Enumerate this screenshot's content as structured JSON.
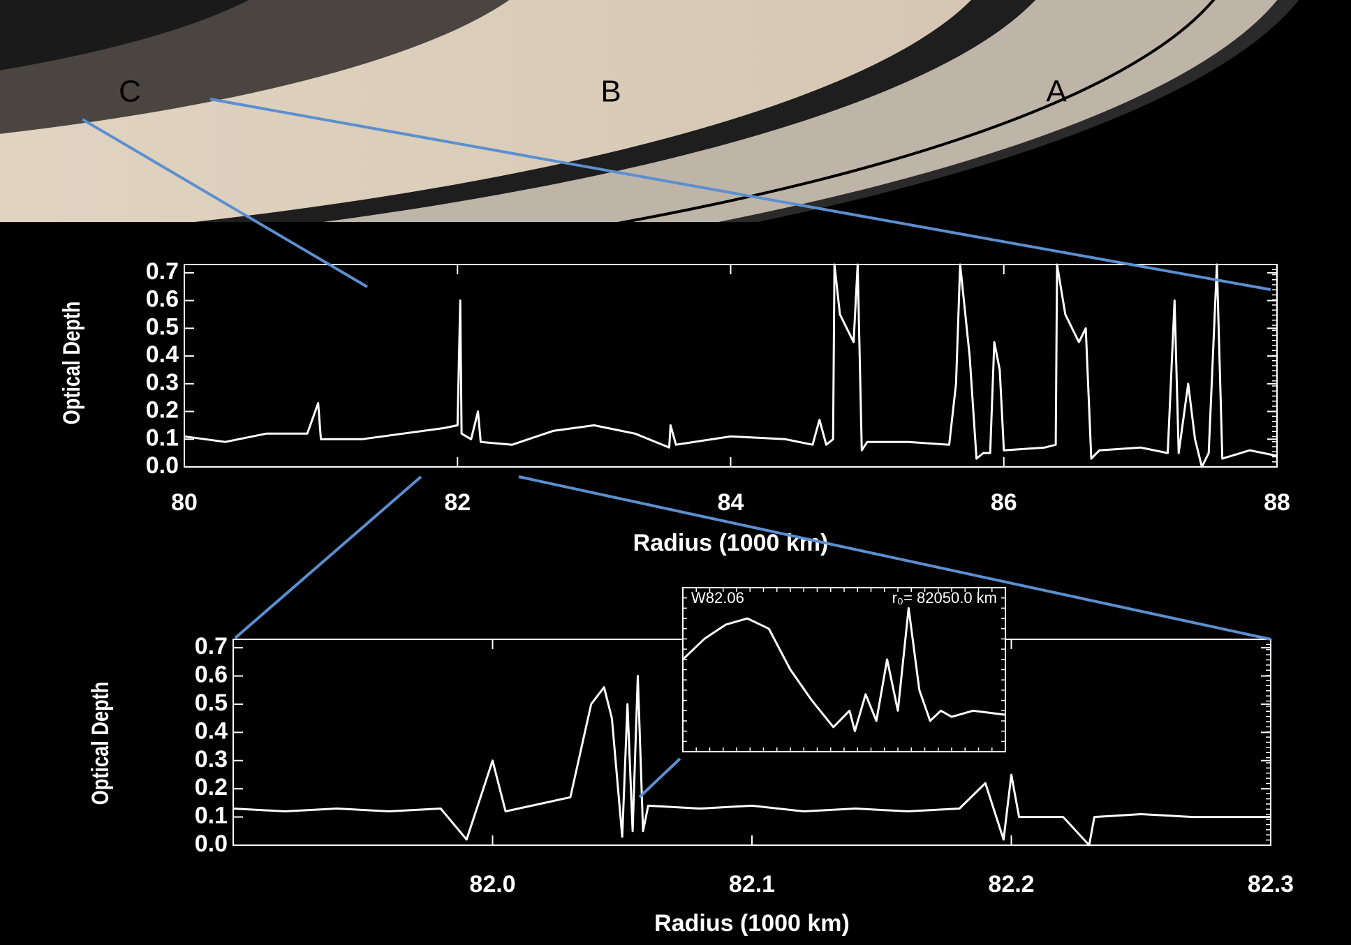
{
  "ring_image": {
    "labels": [
      "C",
      "B",
      "A"
    ]
  },
  "chart_data": [
    {
      "type": "line",
      "x_label": "Radius (1000 km)",
      "y_label": "Optical Depth",
      "color": "#ffffff",
      "x": [
        80.0,
        80.3,
        80.6,
        80.9,
        80.98,
        81.0,
        81.3,
        81.6,
        81.9,
        82.0,
        82.02,
        82.03,
        82.1,
        82.15,
        82.17,
        82.4,
        82.7,
        83.0,
        83.3,
        83.55,
        83.56,
        83.6,
        84.0,
        84.4,
        84.6,
        84.65,
        84.7,
        84.75,
        84.76,
        84.8,
        84.9,
        84.93,
        84.96,
        85.0,
        85.3,
        85.6,
        85.65,
        85.68,
        85.75,
        85.8,
        85.85,
        85.9,
        85.93,
        85.97,
        86.0,
        86.3,
        86.38,
        86.39,
        86.45,
        86.55,
        86.6,
        86.64,
        86.7,
        87.0,
        87.2,
        87.25,
        87.28,
        87.35,
        87.4,
        87.45,
        87.5,
        87.56,
        87.6,
        87.8,
        88.0
      ],
      "values": [
        0.11,
        0.09,
        0.12,
        0.12,
        0.23,
        0.1,
        0.1,
        0.12,
        0.14,
        0.15,
        0.6,
        0.12,
        0.1,
        0.2,
        0.09,
        0.08,
        0.13,
        0.15,
        0.12,
        0.07,
        0.15,
        0.08,
        0.11,
        0.1,
        0.08,
        0.17,
        0.08,
        0.1,
        0.73,
        0.55,
        0.45,
        0.73,
        0.06,
        0.09,
        0.09,
        0.08,
        0.3,
        0.73,
        0.4,
        0.03,
        0.05,
        0.05,
        0.45,
        0.35,
        0.06,
        0.07,
        0.08,
        0.73,
        0.55,
        0.45,
        0.5,
        0.03,
        0.06,
        0.07,
        0.05,
        0.6,
        0.05,
        0.3,
        0.1,
        0.0,
        0.05,
        0.73,
        0.03,
        0.06,
        0.04
      ],
      "xlim": [
        80,
        88
      ],
      "ylim": [
        0,
        0.73
      ],
      "xticks": [
        80,
        82,
        84,
        86,
        88
      ],
      "yticks": [
        {
          "value": 0,
          "label": "0.0"
        },
        0.1,
        0.2,
        0.3,
        0.4,
        0.5,
        0.6,
        0.7
      ]
    },
    {
      "type": "line",
      "x_label": "Radius (1000 km)",
      "y_label": "Optical Depth",
      "color": "#ffffff",
      "x": [
        81.9,
        81.92,
        81.94,
        81.96,
        81.98,
        81.99,
        82.0,
        82.005,
        82.01,
        82.03,
        82.038,
        82.043,
        82.046,
        82.05,
        82.052,
        82.054,
        82.056,
        82.058,
        82.06,
        82.08,
        82.1,
        82.12,
        82.14,
        82.16,
        82.18,
        82.19,
        82.197,
        82.2,
        82.203,
        82.22,
        82.23,
        82.232,
        82.25,
        82.27,
        82.3
      ],
      "values": [
        0.13,
        0.12,
        0.13,
        0.12,
        0.13,
        0.02,
        0.3,
        0.12,
        0.13,
        0.17,
        0.5,
        0.56,
        0.45,
        0.03,
        0.5,
        0.05,
        0.6,
        0.05,
        0.14,
        0.13,
        0.14,
        0.12,
        0.13,
        0.12,
        0.13,
        0.22,
        0.02,
        0.25,
        0.1,
        0.1,
        0.0,
        0.1,
        0.11,
        0.1,
        0.1
      ],
      "xlim": [
        81.9,
        82.3
      ],
      "ylim": [
        0,
        0.73
      ],
      "xticks": [
        {
          "value": 82.0,
          "label": "82.0"
        },
        82.1,
        82.2,
        82.3
      ],
      "yticks": [
        {
          "value": 0,
          "label": "0.0"
        },
        0.1,
        0.2,
        0.3,
        0.4,
        0.5,
        0.6,
        0.7
      ]
    },
    {
      "type": "line",
      "annotations": [
        "W82.06",
        "r₀= 82050.0 km"
      ],
      "color": "#ffffff",
      "x": [
        82.035,
        82.037,
        82.039,
        82.041,
        82.043,
        82.045,
        82.047,
        82.049,
        82.0505,
        82.051,
        82.052,
        82.053,
        82.054,
        82.055,
        82.056,
        82.057,
        82.058,
        82.059,
        82.06,
        82.062,
        82.065
      ],
      "values": [
        0.45,
        0.55,
        0.62,
        0.65,
        0.6,
        0.4,
        0.25,
        0.12,
        0.2,
        0.1,
        0.28,
        0.15,
        0.45,
        0.2,
        0.7,
        0.3,
        0.15,
        0.2,
        0.17,
        0.2,
        0.18
      ],
      "xlim": [
        82.035,
        82.065
      ],
      "ylim": [
        0,
        0.8
      ]
    }
  ]
}
